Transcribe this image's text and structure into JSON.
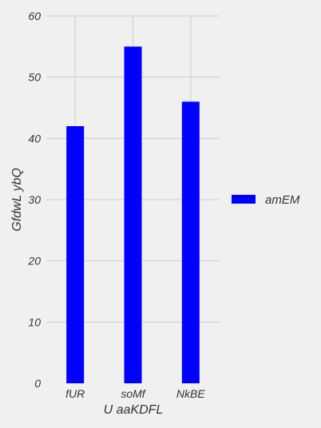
{
  "chart_data": {
    "type": "bar",
    "categories": [
      "fUR",
      "soMf",
      "NkBE"
    ],
    "series": [
      {
        "name": "amEM",
        "values": [
          42,
          55,
          46
        ],
        "color": "#0000ff"
      }
    ],
    "xlabel": "U aaKDFL",
    "ylabel": "GfdwL ybQ",
    "ylim": [
      0,
      60
    ],
    "yticks": [
      0,
      10,
      20,
      30,
      40,
      50,
      60
    ],
    "grid": true,
    "legend": "right",
    "background": "#f0f0f0",
    "grid_color": "#cbcbcb"
  }
}
